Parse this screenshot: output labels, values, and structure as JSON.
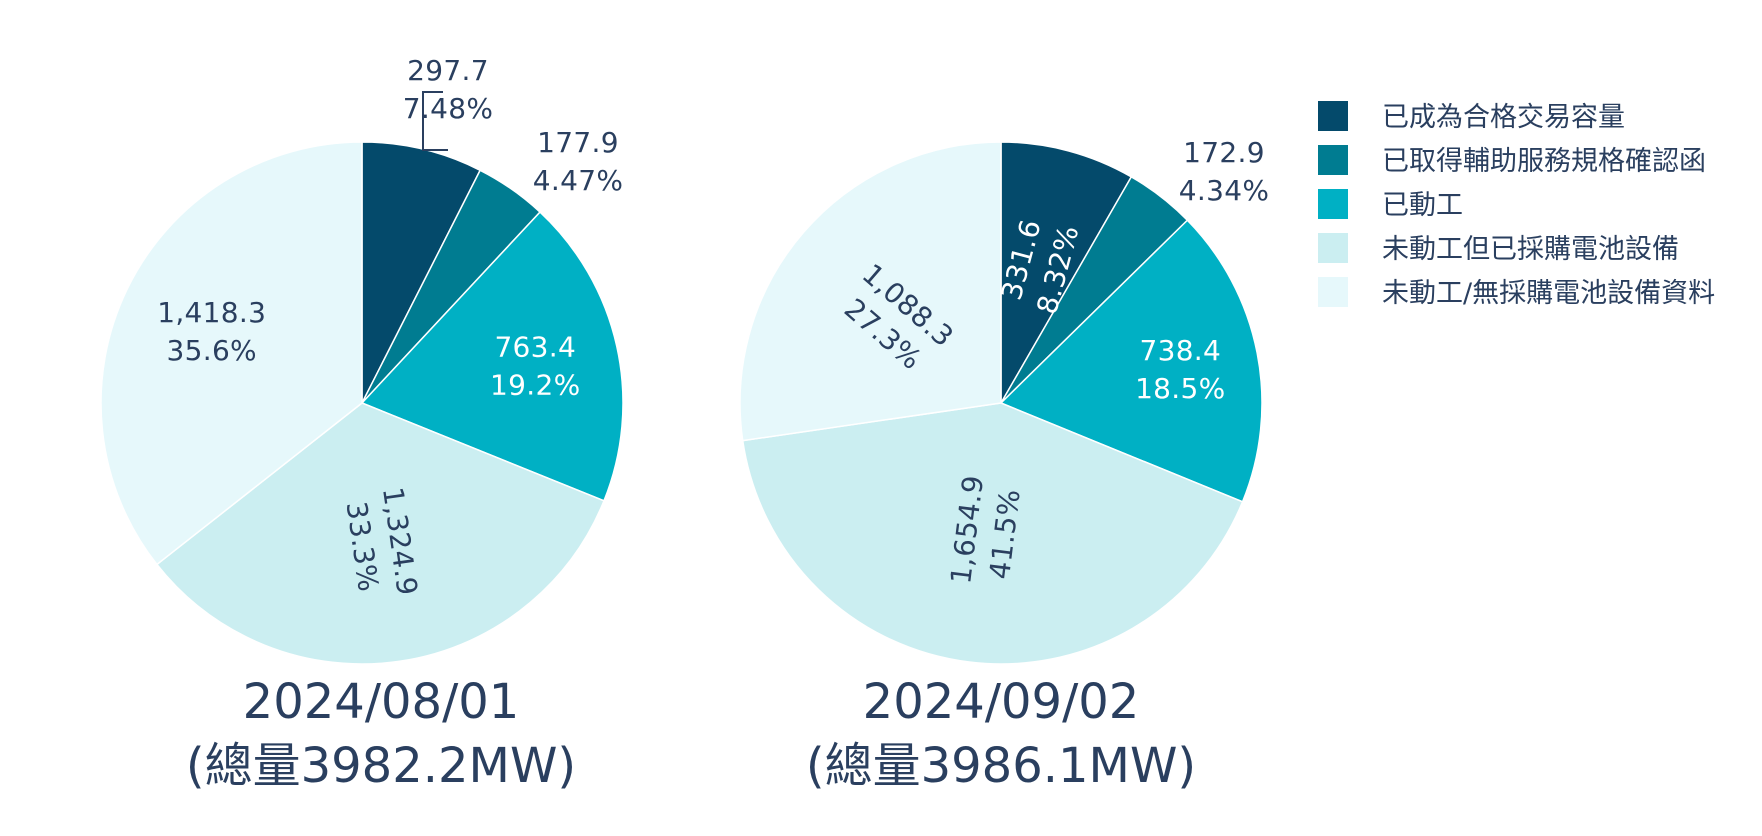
{
  "chart_data": {
    "type": "pie",
    "legend_position": "top-right",
    "colors": [
      "#044a6b",
      "#007c91",
      "#00b0c4",
      "#cbeef1",
      "#e6f8fb"
    ],
    "categories": [
      "已成為合格交易容量",
      "已取得輔助服務規格確認函",
      "已動工",
      "未動工但已採購電池設備",
      "未動工/無採購電池設備資料"
    ],
    "pies": [
      {
        "title_line1": "2024/08/01",
        "title_line2": "(總量3982.2MW)",
        "values": [
          297.7,
          177.9,
          763.4,
          1324.9,
          1418.3
        ],
        "value_labels": [
          "297.7",
          "177.9",
          "763.4",
          "1,324.9",
          "1,418.3"
        ],
        "percent_labels": [
          "7.48%",
          "4.47%",
          "19.2%",
          "33.3%",
          "35.6%"
        ]
      },
      {
        "title_line1": "2024/09/02",
        "title_line2": "(總量3986.1MW)",
        "values": [
          331.6,
          172.9,
          738.4,
          1654.9,
          1088.3
        ],
        "value_labels": [
          "331.6",
          "172.9",
          "738.4",
          "1,654.9",
          "1,088.3"
        ],
        "percent_labels": [
          "8.32%",
          "4.34%",
          "18.5%",
          "41.5%",
          "27.3%"
        ]
      }
    ]
  }
}
